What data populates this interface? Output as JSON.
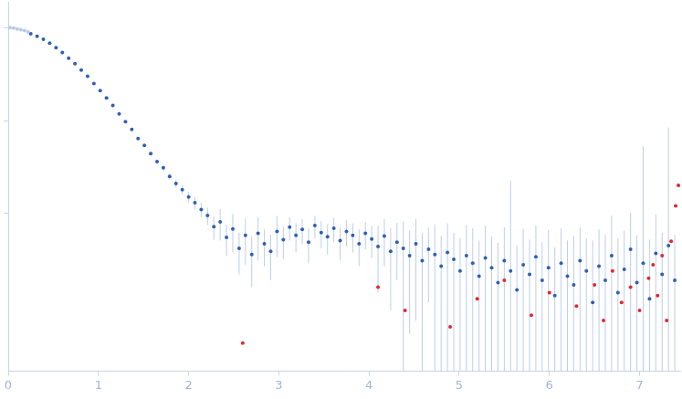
{
  "chart_data": {
    "type": "scatter",
    "log": "y",
    "grid": false,
    "tick_labels": "x",
    "xlim": [
      0,
      7.45
    ],
    "ylim": [
      0.0002,
      1.9
    ],
    "xticks": [
      0,
      1,
      2,
      3,
      4,
      5,
      6,
      7
    ],
    "yticks": [
      0.01,
      0.1,
      1
    ],
    "series": [
      {
        "color": "#b8c9e6",
        "x": [
          0.02,
          0.06,
          0.1,
          0.14,
          0.18,
          0.22
        ],
        "values": [
          1.0,
          0.99,
          0.97,
          0.95,
          0.93,
          0.9
        ],
        "errors": [
          0.004,
          0.004,
          0.004,
          0.004,
          0.004,
          0.004
        ]
      },
      {
        "color": "#2f5fb3",
        "x": [
          0.25,
          0.32,
          0.39,
          0.46,
          0.53,
          0.6,
          0.67,
          0.74,
          0.81,
          0.88,
          0.95,
          1.02,
          1.09,
          1.16,
          1.23,
          1.3,
          1.37,
          1.44,
          1.51,
          1.58,
          1.65,
          1.72,
          1.79,
          1.86,
          1.93,
          2.0,
          2.07,
          2.14,
          2.21,
          2.28,
          2.35,
          2.42,
          2.49,
          2.56,
          2.63,
          2.7,
          2.77,
          2.84,
          2.91,
          2.98,
          3.05,
          3.12,
          3.19,
          3.26,
          3.33,
          3.4,
          3.47,
          3.54,
          3.61,
          3.68,
          3.75,
          3.82,
          3.89,
          3.96,
          4.03,
          4.1,
          4.17,
          4.24,
          4.31,
          4.38,
          4.45,
          4.52,
          4.59,
          4.66,
          4.73,
          4.8,
          4.87,
          4.94,
          5.01,
          5.08,
          5.15,
          5.22,
          5.29,
          5.36,
          5.43,
          5.5,
          5.57,
          5.64,
          5.71,
          5.78,
          5.85,
          5.92,
          5.99,
          6.06,
          6.13,
          6.2,
          6.27,
          6.34,
          6.41,
          6.48,
          6.55,
          6.62,
          6.69,
          6.76,
          6.83,
          6.9,
          6.97,
          7.04,
          7.11,
          7.18,
          7.25,
          7.32,
          7.39
        ],
        "values": [
          0.86,
          0.81,
          0.75,
          0.68,
          0.61,
          0.54,
          0.47,
          0.41,
          0.35,
          0.3,
          0.25,
          0.21,
          0.175,
          0.145,
          0.118,
          0.097,
          0.08,
          0.064,
          0.054,
          0.044,
          0.036,
          0.031,
          0.025,
          0.021,
          0.018,
          0.015,
          0.013,
          0.011,
          0.0095,
          0.0072,
          0.0081,
          0.0055,
          0.0068,
          0.0042,
          0.0058,
          0.0036,
          0.0061,
          0.0047,
          0.0039,
          0.0064,
          0.0052,
          0.0071,
          0.0058,
          0.0067,
          0.0049,
          0.0074,
          0.0062,
          0.0056,
          0.0069,
          0.0051,
          0.0064,
          0.0058,
          0.0047,
          0.0061,
          0.0053,
          0.0044,
          0.0057,
          0.0039,
          0.0049,
          0.0042,
          0.0035,
          0.0047,
          0.0031,
          0.0041,
          0.0036,
          0.0027,
          0.0038,
          0.0032,
          0.0024,
          0.0035,
          0.0029,
          0.0021,
          0.0033,
          0.0026,
          0.0018,
          0.0031,
          0.0024,
          0.0015,
          0.0028,
          0.0022,
          0.0034,
          0.0019,
          0.0026,
          0.0013,
          0.0029,
          0.0021,
          0.0017,
          0.0031,
          0.0024,
          0.0011,
          0.0027,
          0.0019,
          0.0035,
          0.0014,
          0.0025,
          0.0041,
          0.0018,
          0.0029,
          0.0012,
          0.0037,
          0.0022,
          0.0045,
          0.0019
        ],
        "errors": [
          0.005,
          0.005,
          0.005,
          0.005,
          0.005,
          0.005,
          0.005,
          0.004,
          0.004,
          0.004,
          0.003,
          0.003,
          0.003,
          0.003,
          0.002,
          0.002,
          0.002,
          0.002,
          0.002,
          0.002,
          0.002,
          0.002,
          0.002,
          0.002,
          0.002,
          0.002,
          0.002,
          0.002,
          0.002,
          0.002,
          0.003,
          0.002,
          0.003,
          0.002,
          0.003,
          0.002,
          0.003,
          0.002,
          0.002,
          0.003,
          0.002,
          0.002,
          0.002,
          0.002,
          0.002,
          0.002,
          0.002,
          0.002,
          0.002,
          0.002,
          0.002,
          0.002,
          0.002,
          0.002,
          0.002,
          0.003,
          0.003,
          0.003,
          0.003,
          0.004,
          0.003,
          0.004,
          0.003,
          0.003,
          0.004,
          0.003,
          0.004,
          0.003,
          0.003,
          0.004,
          0.004,
          0.003,
          0.004,
          0.003,
          0.003,
          0.004,
          0.02,
          0.003,
          0.004,
          0.003,
          0.004,
          0.003,
          0.004,
          0.003,
          0.004,
          0.003,
          0.004,
          0.004,
          0.003,
          0.004,
          0.004,
          0.004,
          0.006,
          0.004,
          0.004,
          0.006,
          0.004,
          0.05,
          0.004,
          0.006,
          0.004,
          0.08,
          0.004
        ]
      },
      {
        "color": "#e0282e",
        "x": [
          2.6,
          4.1,
          4.4,
          4.9,
          5.2,
          5.5,
          5.8,
          6.0,
          6.3,
          6.5,
          6.6,
          6.7,
          6.8,
          6.9,
          7.0,
          7.1,
          7.15,
          7.2,
          7.25,
          7.3,
          7.35,
          7.4,
          7.43
        ],
        "values": [
          0.0004,
          0.0016,
          0.0009,
          0.0006,
          0.0012,
          0.0019,
          0.0008,
          0.0014,
          0.001,
          0.0017,
          0.0007,
          0.0024,
          0.0011,
          0.0016,
          0.0009,
          0.002,
          0.0028,
          0.0013,
          0.0035,
          0.0007,
          0.005,
          0.012,
          0.02
        ]
      }
    ]
  }
}
